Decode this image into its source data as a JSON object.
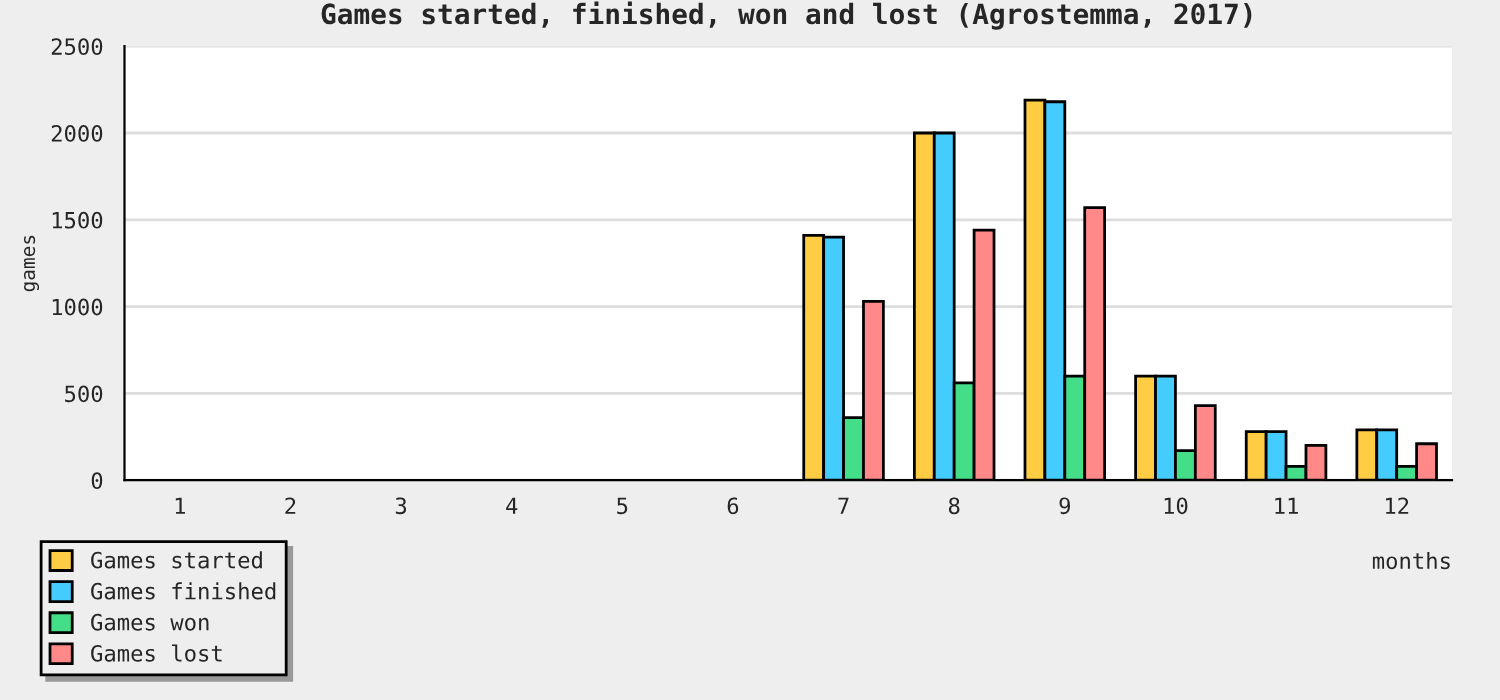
{
  "chart_data": {
    "type": "bar",
    "title": "Games started, finished, won and lost (Agrostemma, 2017)",
    "xlabel": "months",
    "ylabel": "games",
    "categories": [
      "1",
      "2",
      "3",
      "4",
      "5",
      "6",
      "7",
      "8",
      "9",
      "10",
      "11",
      "12"
    ],
    "series": [
      {
        "name": "Games started",
        "color": "#ffcc44",
        "values": [
          null,
          null,
          null,
          null,
          null,
          null,
          1410,
          2000,
          2190,
          600,
          280,
          290
        ]
      },
      {
        "name": "Games finished",
        "color": "#44ccff",
        "values": [
          null,
          null,
          null,
          null,
          null,
          null,
          1400,
          2000,
          2180,
          600,
          280,
          290
        ]
      },
      {
        "name": "Games won",
        "color": "#44dd88",
        "values": [
          null,
          null,
          null,
          null,
          null,
          null,
          360,
          560,
          600,
          170,
          80,
          80
        ]
      },
      {
        "name": "Games lost",
        "color": "#ff8888",
        "values": [
          null,
          null,
          null,
          null,
          null,
          null,
          1030,
          1440,
          1570,
          430,
          200,
          210
        ]
      }
    ],
    "ylim": [
      0,
      2500
    ],
    "yticks": [
      0,
      500,
      1000,
      1500,
      2000,
      2500
    ],
    "grid": "y",
    "legend": "bottom left"
  }
}
